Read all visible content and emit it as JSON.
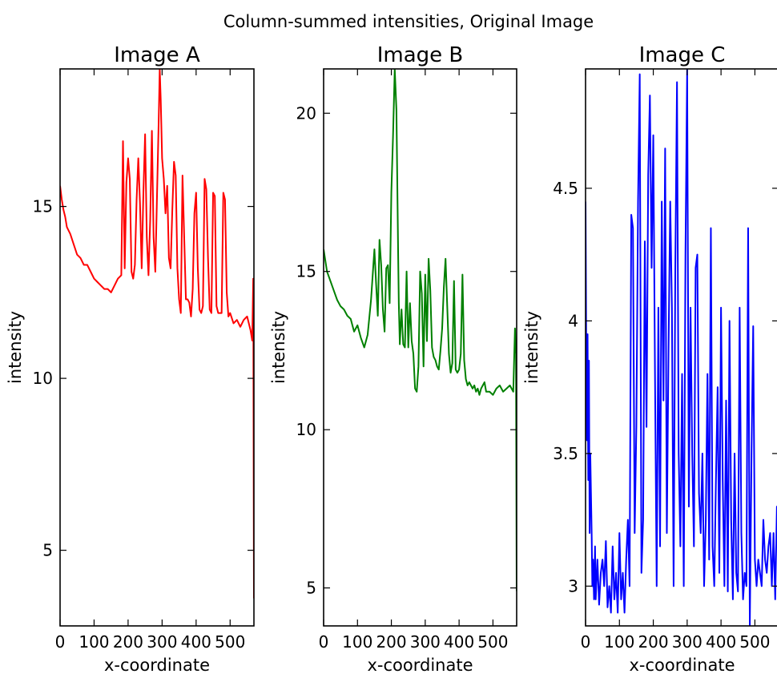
{
  "figure": {
    "suptitle": "Column-summed intensities, Original Image"
  },
  "chart_data": [
    {
      "type": "line",
      "title": "Image A",
      "xlabel": "x-coordinate",
      "ylabel": "intensity",
      "xlim": [
        0,
        570
      ],
      "ylim": [
        2.8,
        19.0
      ],
      "xticks": [
        0,
        100,
        200,
        300,
        400,
        500
      ],
      "yticks": [
        5,
        10,
        15
      ],
      "series": [
        {
          "color": "#ff0000",
          "x": [
            0,
            5,
            10,
            15,
            20,
            30,
            40,
            50,
            60,
            70,
            80,
            90,
            100,
            110,
            120,
            130,
            140,
            150,
            160,
            170,
            180,
            185,
            190,
            195,
            200,
            205,
            210,
            215,
            220,
            225,
            230,
            235,
            240,
            245,
            250,
            255,
            260,
            265,
            270,
            275,
            280,
            285,
            290,
            293,
            296,
            300,
            305,
            310,
            315,
            320,
            325,
            330,
            335,
            340,
            345,
            350,
            355,
            360,
            365,
            370,
            375,
            380,
            385,
            390,
            395,
            400,
            405,
            410,
            415,
            420,
            425,
            430,
            435,
            440,
            445,
            450,
            455,
            460,
            465,
            470,
            475,
            480,
            485,
            490,
            495,
            500,
            510,
            520,
            530,
            540,
            550,
            560,
            565,
            568,
            570
          ],
          "values": [
            15.6,
            15.2,
            14.9,
            14.7,
            14.4,
            14.2,
            13.9,
            13.6,
            13.5,
            13.3,
            13.3,
            13.1,
            12.9,
            12.8,
            12.7,
            12.6,
            12.6,
            12.5,
            12.7,
            12.9,
            13.0,
            16.9,
            13.2,
            15.7,
            16.4,
            15.8,
            13.1,
            12.9,
            13.3,
            15.2,
            16.4,
            15.1,
            13.2,
            15.4,
            17.1,
            14.1,
            13.0,
            14.6,
            17.2,
            14.1,
            13.1,
            15.3,
            17.5,
            19.0,
            18.1,
            16.4,
            15.8,
            14.8,
            15.6,
            13.5,
            13.2,
            14.9,
            16.3,
            15.9,
            13.2,
            12.3,
            11.9,
            15.9,
            14.1,
            12.3,
            12.3,
            12.2,
            11.8,
            12.6,
            14.8,
            15.4,
            13.2,
            12.0,
            11.9,
            12.1,
            15.8,
            15.5,
            13.5,
            12.0,
            11.9,
            15.4,
            15.3,
            12.1,
            11.9,
            11.9,
            11.9,
            15.4,
            15.2,
            12.5,
            11.8,
            11.9,
            11.6,
            11.7,
            11.5,
            11.7,
            11.8,
            11.4,
            11.1,
            12.9,
            3.6
          ]
        }
      ]
    },
    {
      "type": "line",
      "title": "Image B",
      "xlabel": "x-coordinate",
      "ylabel": "intensity",
      "xlim": [
        0,
        570
      ],
      "ylim": [
        3.8,
        21.4
      ],
      "xticks": [
        0,
        100,
        200,
        300,
        400,
        500
      ],
      "yticks": [
        5,
        10,
        15,
        20
      ],
      "series": [
        {
          "color": "#008000",
          "x": [
            0,
            10,
            20,
            30,
            40,
            50,
            60,
            70,
            80,
            90,
            100,
            110,
            120,
            130,
            140,
            150,
            155,
            160,
            165,
            170,
            175,
            180,
            185,
            190,
            195,
            200,
            205,
            210,
            215,
            220,
            222,
            225,
            230,
            235,
            240,
            245,
            250,
            255,
            260,
            265,
            270,
            275,
            280,
            285,
            290,
            295,
            300,
            305,
            310,
            315,
            320,
            325,
            330,
            335,
            340,
            345,
            350,
            355,
            360,
            365,
            370,
            375,
            380,
            385,
            390,
            395,
            400,
            405,
            410,
            415,
            420,
            425,
            430,
            435,
            440,
            445,
            450,
            455,
            460,
            465,
            470,
            475,
            480,
            490,
            500,
            510,
            520,
            530,
            540,
            550,
            560,
            565,
            568,
            570
          ],
          "values": [
            15.7,
            15.0,
            14.7,
            14.4,
            14.1,
            13.9,
            13.8,
            13.6,
            13.5,
            13.1,
            13.3,
            12.9,
            12.6,
            13.0,
            14.1,
            15.7,
            14.6,
            13.6,
            16.0,
            15.2,
            13.8,
            13.1,
            15.1,
            15.2,
            14.0,
            17.5,
            19.3,
            21.4,
            20.1,
            15.6,
            14.0,
            12.7,
            13.8,
            12.7,
            12.6,
            15.0,
            12.6,
            14.0,
            12.8,
            12.4,
            11.3,
            11.2,
            12.0,
            15.0,
            14.3,
            12.0,
            14.9,
            12.8,
            15.4,
            14.4,
            12.6,
            12.3,
            12.2,
            12.0,
            11.9,
            12.5,
            13.2,
            14.5,
            15.4,
            13.9,
            12.4,
            11.8,
            12.1,
            14.7,
            11.9,
            11.8,
            11.9,
            12.4,
            14.9,
            12.2,
            11.6,
            11.4,
            11.5,
            11.4,
            11.3,
            11.4,
            11.2,
            11.3,
            11.1,
            11.3,
            11.4,
            11.5,
            11.2,
            11.2,
            11.1,
            11.3,
            11.4,
            11.2,
            11.3,
            11.4,
            11.2,
            13.2,
            12.4,
            4.9
          ]
        }
      ]
    },
    {
      "type": "line",
      "title": "Image C",
      "xlabel": "x-coordinate",
      "ylabel": "intensity",
      "xlim": [
        0,
        570
      ],
      "ylim": [
        2.85,
        4.95
      ],
      "xticks": [
        0,
        100,
        200,
        300,
        400,
        500
      ],
      "yticks": [
        3.0,
        3.5,
        4.0,
        4.5
      ],
      "series": [
        {
          "color": "#0000ff",
          "x": [
            0,
            2,
            4,
            6,
            8,
            10,
            12,
            14,
            16,
            18,
            20,
            22,
            25,
            28,
            30,
            35,
            40,
            45,
            50,
            55,
            60,
            65,
            70,
            75,
            80,
            85,
            90,
            95,
            100,
            105,
            110,
            115,
            120,
            125,
            130,
            135,
            140,
            145,
            150,
            155,
            160,
            165,
            170,
            175,
            180,
            185,
            190,
            195,
            200,
            205,
            210,
            215,
            220,
            225,
            230,
            235,
            240,
            245,
            250,
            255,
            260,
            265,
            270,
            275,
            280,
            285,
            290,
            295,
            300,
            305,
            310,
            315,
            320,
            325,
            330,
            335,
            340,
            345,
            350,
            355,
            360,
            365,
            370,
            375,
            380,
            385,
            390,
            395,
            400,
            405,
            410,
            415,
            420,
            425,
            430,
            435,
            440,
            445,
            450,
            455,
            460,
            465,
            470,
            475,
            480,
            485,
            490,
            495,
            500,
            505,
            510,
            515,
            520,
            525,
            530,
            535,
            540,
            545,
            550,
            555,
            560,
            565,
            570
          ],
          "values": [
            4.45,
            3.9,
            3.55,
            3.95,
            3.4,
            3.85,
            3.2,
            3.5,
            3.35,
            3.2,
            3.0,
            3.1,
            2.95,
            3.15,
            2.95,
            3.1,
            2.93,
            3.05,
            3.1,
            3.0,
            3.17,
            2.92,
            3.0,
            2.9,
            3.15,
            2.95,
            3.05,
            2.9,
            3.2,
            2.95,
            3.05,
            2.9,
            3.1,
            3.25,
            3.0,
            4.4,
            4.35,
            3.2,
            3.6,
            4.45,
            4.93,
            3.05,
            3.25,
            4.3,
            3.6,
            4.55,
            4.85,
            4.2,
            4.7,
            3.8,
            3.0,
            4.05,
            3.15,
            4.45,
            3.7,
            4.65,
            3.2,
            3.9,
            4.45,
            4.05,
            3.0,
            4.2,
            4.9,
            3.5,
            3.15,
            3.8,
            3.0,
            4.25,
            4.95,
            3.3,
            4.05,
            3.5,
            3.15,
            4.2,
            4.25,
            3.35,
            3.2,
            3.5,
            3.0,
            3.25,
            3.8,
            3.1,
            4.35,
            3.15,
            3.0,
            3.4,
            3.75,
            3.05,
            4.05,
            3.4,
            3.0,
            3.7,
            2.98,
            4.0,
            3.25,
            2.95,
            3.5,
            3.05,
            2.98,
            4.05,
            3.2,
            2.95,
            3.05,
            3.0,
            4.35,
            2.85,
            3.5,
            3.98,
            3.1,
            3.0,
            3.1,
            3.05,
            3.0,
            3.25,
            3.1,
            3.05,
            3.15,
            3.2,
            3.0,
            3.2,
            2.95,
            3.3,
            3.15
          ]
        }
      ]
    }
  ]
}
